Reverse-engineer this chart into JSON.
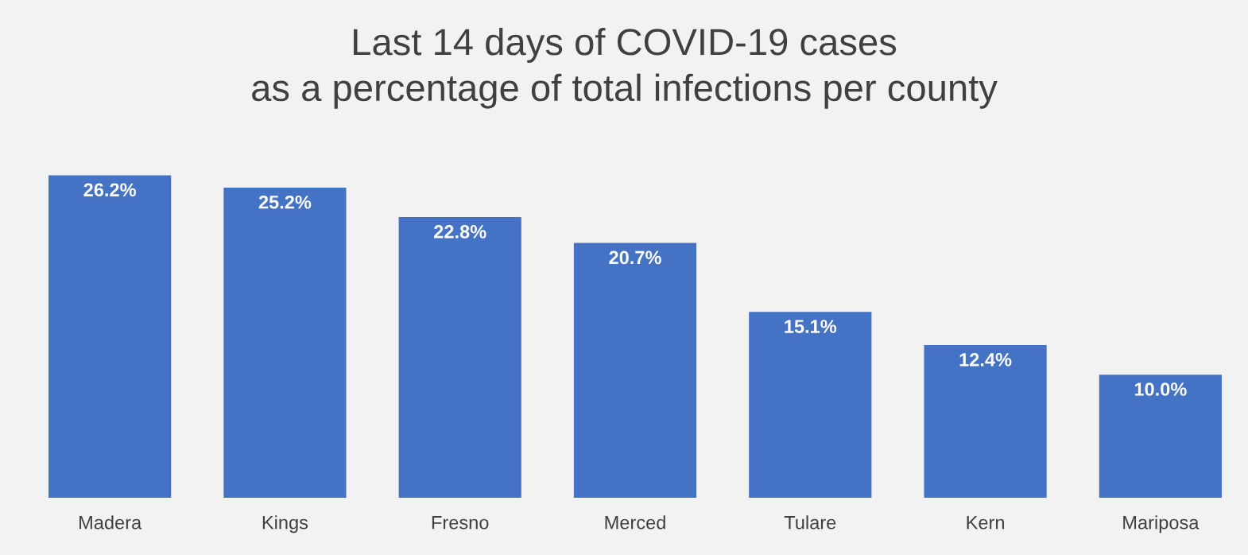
{
  "chart_data": {
    "type": "bar",
    "title": "Last 14 days of COVID-19 cases\nas a percentage of total infections per county",
    "categories": [
      "Madera",
      "Kings",
      "Fresno",
      "Merced",
      "Tulare",
      "Kern",
      "Mariposa"
    ],
    "values": [
      26.2,
      25.2,
      22.8,
      20.7,
      15.1,
      12.4,
      10.0
    ],
    "value_labels": [
      "26.2%",
      "25.2%",
      "22.8%",
      "20.7%",
      "15.1%",
      "12.4%",
      "10.0%"
    ],
    "color": "#4472c4",
    "tick_labels": "x",
    "grid": false,
    "legend": false
  }
}
